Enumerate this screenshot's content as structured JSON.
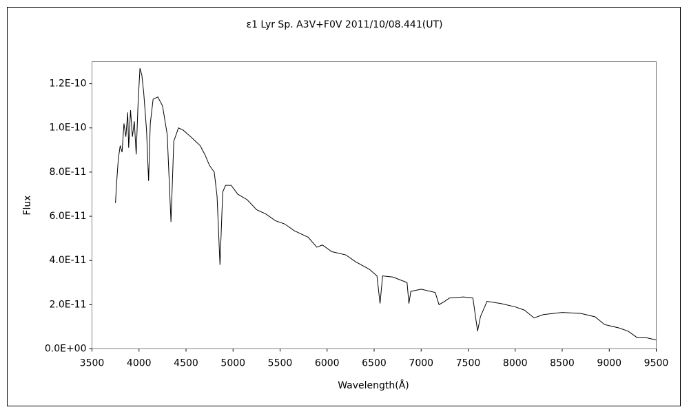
{
  "chart_data": {
    "type": "line",
    "title": "ε1 Lyr  Sp. A3V+F0V   2011/10/08.441(UT)",
    "x_label": "Wavelength(Å)",
    "y_label": "Flux",
    "color": "#000000",
    "x": [
      3750,
      3760,
      3780,
      3800,
      3820,
      3840,
      3860,
      3880,
      3890,
      3910,
      3930,
      3950,
      3970,
      3990,
      4010,
      4030,
      4050,
      4080,
      4102,
      4120,
      4150,
      4200,
      4250,
      4300,
      4340,
      4370,
      4420,
      4470,
      4550,
      4600,
      4650,
      4700,
      4750,
      4800,
      4830,
      4861,
      4890,
      4920,
      4980,
      5050,
      5150,
      5250,
      5350,
      5450,
      5550,
      5650,
      5800,
      5890,
      5950,
      6050,
      6200,
      6300,
      6450,
      6530,
      6563,
      6590,
      6700,
      6850,
      6870,
      6890,
      7000,
      7150,
      7190,
      7250,
      7300,
      7450,
      7550,
      7600,
      7630,
      7700,
      7850,
      8000,
      8100,
      8200,
      8300,
      8500,
      8700,
      8850,
      8950,
      9100,
      9200,
      9300,
      9400,
      9500
    ],
    "values": [
      6.6e-11,
      7.4e-11,
      8.6e-11,
      9.2e-11,
      8.9e-11,
      1.02e-10,
      9.6e-11,
      1.07e-10,
      9.1e-11,
      1.08e-10,
      9.6e-11,
      1.03e-10,
      8.8e-11,
      1.11e-10,
      1.27e-10,
      1.24e-10,
      1.16e-10,
      9.9e-11,
      7.6e-11,
      1.02e-10,
      1.13e-10,
      1.14e-10,
      1.1e-10,
      9.7e-11,
      5.75e-11,
      9.4e-11,
      1e-10,
      9.9e-11,
      9.6e-11,
      9.4e-11,
      9.2e-11,
      8.8e-11,
      8.3e-11,
      8e-11,
      6.9e-11,
      3.8e-11,
      7.1e-11,
      7.4e-11,
      7.4e-11,
      7e-11,
      6.75e-11,
      6.3e-11,
      6.1e-11,
      5.8e-11,
      5.65e-11,
      5.35e-11,
      5.05e-11,
      4.6e-11,
      4.7e-11,
      4.4e-11,
      4.25e-11,
      3.95e-11,
      3.6e-11,
      3.3e-11,
      2.05e-11,
      3.3e-11,
      3.25e-11,
      3e-11,
      2.05e-11,
      2.6e-11,
      2.7e-11,
      2.55e-11,
      2e-11,
      2.15e-11,
      2.3e-11,
      2.35e-11,
      2.3e-11,
      8e-12,
      1.45e-11,
      2.15e-11,
      2.05e-11,
      1.9e-11,
      1.75e-11,
      1.4e-11,
      1.55e-11,
      1.65e-11,
      1.6e-11,
      1.45e-11,
      1.1e-11,
      9.5e-12,
      8e-12,
      5e-12,
      5e-12,
      4e-12
    ],
    "xlim": [
      3500,
      9500
    ],
    "xticks": [
      3500,
      4000,
      4500,
      5000,
      5500,
      6000,
      6500,
      7000,
      7500,
      8000,
      8500,
      9000,
      9500
    ],
    "ylim": [
      0,
      1.3e-10
    ],
    "yticks": [
      {
        "value": 0,
        "label": "0.0E+00"
      },
      {
        "value": 2e-11,
        "label": "2.0E-11"
      },
      {
        "value": 4e-11,
        "label": "4.0E-11"
      },
      {
        "value": 6e-11,
        "label": "6.0E-11"
      },
      {
        "value": 8e-11,
        "label": "8.0E-11"
      },
      {
        "value": 1e-10,
        "label": "1.0E-10"
      },
      {
        "value": 1.2e-10,
        "label": "1.2E-10"
      }
    ],
    "grid": false
  }
}
